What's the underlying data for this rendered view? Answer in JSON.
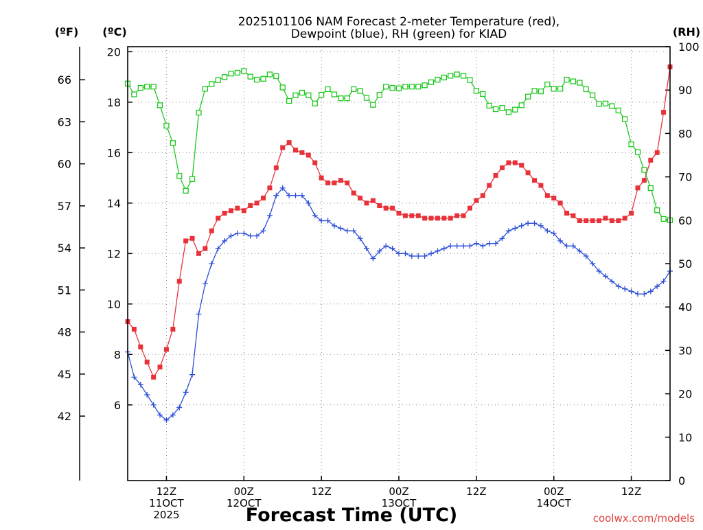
{
  "chart_data": {
    "type": "line",
    "title_line1": "2025101106 NAM Forecast 2-meter Temperature (red),",
    "title_line2": "Dewpoint (blue), RH (green) for KIAD",
    "xlabel": "Forecast Time (UTC)",
    "credit": "coolwx.com/models",
    "unit_f": "(ºF)",
    "unit_c": "(ºC)",
    "unit_rh": "(RH)",
    "x_units": "forecast hour",
    "xlim": [
      0,
      84
    ],
    "ylim_c": [
      3.0,
      20.2
    ],
    "ylim_rh": [
      0,
      100
    ],
    "f_ticks": [
      42,
      45,
      48,
      51,
      54,
      57,
      60,
      63,
      66
    ],
    "c_ticks": [
      6,
      8,
      10,
      12,
      14,
      16,
      18,
      20
    ],
    "rh_ticks": [
      0,
      10,
      20,
      30,
      40,
      50,
      60,
      70,
      80,
      90,
      100
    ],
    "x_ticks": [
      {
        "hour": 6,
        "lines": [
          "12Z",
          "11OCT",
          "2025"
        ]
      },
      {
        "hour": 18,
        "lines": [
          "00Z",
          "12OCT"
        ]
      },
      {
        "hour": 30,
        "lines": [
          "12Z"
        ]
      },
      {
        "hour": 42,
        "lines": [
          "00Z",
          "13OCT"
        ]
      },
      {
        "hour": 54,
        "lines": [
          "12Z"
        ]
      },
      {
        "hour": 66,
        "lines": [
          "00Z",
          "14OCT"
        ]
      },
      {
        "hour": 78,
        "lines": [
          "12Z"
        ]
      }
    ],
    "series": [
      {
        "name": "Temperature",
        "color": "#e8323a",
        "marker": "filled-square",
        "axis": "c",
        "x": [
          0,
          1,
          2,
          3,
          4,
          5,
          6,
          7,
          8,
          9,
          10,
          11,
          12,
          13,
          14,
          15,
          16,
          17,
          18,
          19,
          20,
          21,
          22,
          23,
          24,
          25,
          26,
          27,
          28,
          29,
          30,
          31,
          32,
          33,
          34,
          35,
          36,
          37,
          38,
          39,
          40,
          41,
          42,
          43,
          44,
          45,
          46,
          47,
          48,
          49,
          50,
          51,
          52,
          53,
          54,
          55,
          56,
          57,
          58,
          59,
          60,
          61,
          62,
          63,
          64,
          65,
          66,
          67,
          68,
          69,
          70,
          71,
          72,
          73,
          74,
          75,
          76,
          77,
          78,
          79,
          80,
          81,
          82,
          83,
          84
        ],
        "values": [
          9.3,
          9.0,
          8.3,
          7.7,
          7.1,
          7.5,
          8.2,
          9.0,
          10.9,
          12.5,
          12.6,
          12.0,
          12.2,
          12.9,
          13.4,
          13.6,
          13.7,
          13.8,
          13.7,
          13.9,
          14.0,
          14.2,
          14.6,
          15.4,
          16.2,
          16.4,
          16.1,
          16.0,
          15.9,
          15.6,
          15.0,
          14.8,
          14.8,
          14.9,
          14.8,
          14.4,
          14.2,
          14.0,
          14.1,
          13.9,
          13.8,
          13.8,
          13.6,
          13.5,
          13.5,
          13.5,
          13.4,
          13.4,
          13.4,
          13.4,
          13.4,
          13.5,
          13.5,
          13.8,
          14.1,
          14.3,
          14.7,
          15.1,
          15.4,
          15.6,
          15.6,
          15.5,
          15.2,
          14.9,
          14.7,
          14.3,
          14.2,
          14.0,
          13.6,
          13.5,
          13.3,
          13.3,
          13.3,
          13.3,
          13.4,
          13.3,
          13.3,
          13.4,
          13.6,
          14.6,
          14.9,
          15.7,
          16.0,
          17.6,
          19.4
        ]
      },
      {
        "name": "Dewpoint",
        "color": "#2b4ed8",
        "marker": "plus",
        "axis": "c",
        "x": [
          0,
          1,
          2,
          3,
          4,
          5,
          6,
          7,
          8,
          9,
          10,
          11,
          12,
          13,
          14,
          15,
          16,
          17,
          18,
          19,
          20,
          21,
          22,
          23,
          24,
          25,
          26,
          27,
          28,
          29,
          30,
          31,
          32,
          33,
          34,
          35,
          36,
          37,
          38,
          39,
          40,
          41,
          42,
          43,
          44,
          45,
          46,
          47,
          48,
          49,
          50,
          51,
          52,
          53,
          54,
          55,
          56,
          57,
          58,
          59,
          60,
          61,
          62,
          63,
          64,
          65,
          66,
          67,
          68,
          69,
          70,
          71,
          72,
          73,
          74,
          75,
          76,
          77,
          78,
          79,
          80,
          81,
          82,
          83,
          84
        ],
        "values": [
          8.1,
          7.1,
          6.8,
          6.4,
          6.0,
          5.6,
          5.4,
          5.6,
          5.9,
          6.5,
          7.2,
          9.6,
          10.8,
          11.6,
          12.2,
          12.5,
          12.7,
          12.8,
          12.8,
          12.7,
          12.7,
          12.9,
          13.5,
          14.3,
          14.6,
          14.3,
          14.3,
          14.3,
          14.0,
          13.5,
          13.3,
          13.3,
          13.1,
          13.0,
          12.9,
          12.9,
          12.6,
          12.2,
          11.8,
          12.1,
          12.3,
          12.2,
          12.0,
          12.0,
          11.9,
          11.9,
          11.9,
          12.0,
          12.1,
          12.2,
          12.3,
          12.3,
          12.3,
          12.3,
          12.4,
          12.3,
          12.4,
          12.4,
          12.6,
          12.9,
          13.0,
          13.1,
          13.2,
          13.2,
          13.1,
          12.9,
          12.8,
          12.5,
          12.3,
          12.3,
          12.1,
          11.9,
          11.6,
          11.3,
          11.1,
          10.9,
          10.7,
          10.6,
          10.5,
          10.4,
          10.4,
          10.5,
          10.7,
          10.9,
          11.3
        ]
      },
      {
        "name": "RH",
        "color": "#1ec81e",
        "marker": "open-square",
        "axis": "rh",
        "x": [
          0,
          1,
          2,
          3,
          4,
          5,
          6,
          7,
          8,
          9,
          10,
          11,
          12,
          13,
          14,
          15,
          16,
          17,
          18,
          19,
          20,
          21,
          22,
          23,
          24,
          25,
          26,
          27,
          28,
          29,
          30,
          31,
          32,
          33,
          34,
          35,
          36,
          37,
          38,
          39,
          40,
          41,
          42,
          43,
          44,
          45,
          46,
          47,
          48,
          49,
          50,
          51,
          52,
          53,
          54,
          55,
          56,
          57,
          58,
          59,
          60,
          61,
          62,
          63,
          64,
          65,
          66,
          67,
          68,
          69,
          70,
          71,
          72,
          73,
          74,
          75,
          76,
          77,
          78,
          79,
          80,
          81,
          82,
          83,
          84
        ],
        "values": [
          91.5,
          89.0,
          90.5,
          90.8,
          90.8,
          86.5,
          81.8,
          77.8,
          70.2,
          66.8,
          69.5,
          84.8,
          90.3,
          91.4,
          92.3,
          93.0,
          93.8,
          94.0,
          94.4,
          93.1,
          92.4,
          92.6,
          93.6,
          93.2,
          90.6,
          87.5,
          88.8,
          89.4,
          88.8,
          86.9,
          88.9,
          90.2,
          89.0,
          88.1,
          88.1,
          90.2,
          89.8,
          88.2,
          86.6,
          88.9,
          90.8,
          90.5,
          90.4,
          90.8,
          90.8,
          90.8,
          91.1,
          91.8,
          92.4,
          92.9,
          93.3,
          93.6,
          93.3,
          92.3,
          89.8,
          89.1,
          86.4,
          85.6,
          85.9,
          84.9,
          85.5,
          86.5,
          88.5,
          89.8,
          89.7,
          91.3,
          90.3,
          90.3,
          92.4,
          92.0,
          91.7,
          90.2,
          88.8,
          86.8,
          86.9,
          86.3,
          85.3,
          83.3,
          77.5,
          75.7,
          71.6,
          67.4,
          62.3,
          60.3,
          60.0
        ]
      }
    ]
  }
}
